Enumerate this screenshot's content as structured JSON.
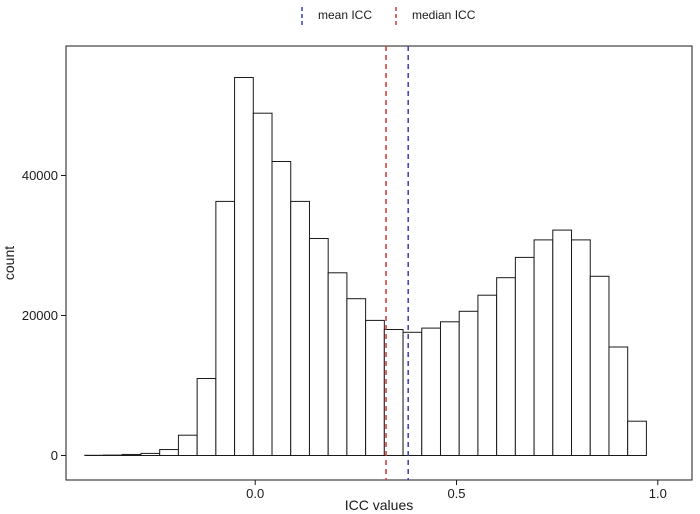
{
  "chart_data": {
    "type": "bar",
    "subtype": "histogram",
    "title": "",
    "xlabel": "ICC values",
    "ylabel": "count",
    "bin_width": 0.0465,
    "bin_centers": [
      -0.4,
      -0.3535,
      -0.307,
      -0.2605,
      -0.214,
      -0.1675,
      -0.121,
      -0.0745,
      -0.028,
      0.0185,
      0.065,
      0.1115,
      0.158,
      0.2045,
      0.251,
      0.2975,
      0.344,
      0.3905,
      0.437,
      0.4835,
      0.53,
      0.5765,
      0.623,
      0.6695,
      0.716,
      0.7625,
      0.809,
      0.8555,
      0.902,
      0.9485,
      0.995
    ],
    "counts": [
      30,
      60,
      150,
      300,
      850,
      2900,
      11000,
      36300,
      54000,
      48900,
      42000,
      36300,
      31000,
      26100,
      22400,
      19300,
      18000,
      17600,
      18200,
      19100,
      20600,
      22900,
      25400,
      28300,
      30800,
      32200,
      30800,
      25600,
      15500,
      4900,
      0
    ],
    "xlim": [
      -0.47,
      1.085
    ],
    "ylim": [
      -3500,
      58500
    ],
    "x_ticks": [
      0.0,
      0.5,
      1.0
    ],
    "x_tick_labels": [
      "0.0",
      "0.5",
      "1.0"
    ],
    "y_ticks": [
      0,
      20000,
      40000
    ],
    "y_tick_labels": [
      "0",
      "20000",
      "40000"
    ],
    "reference_lines": [
      {
        "name": "mean ICC",
        "x": 0.38,
        "color": "#3b3bb3",
        "style": "dashed"
      },
      {
        "name": "median ICC",
        "x": 0.325,
        "color": "#d43535",
        "style": "dashed"
      }
    ],
    "bar_fill": "#ffffff",
    "bar_stroke": "#1a1a1a",
    "grid": false,
    "legend_position": "top"
  }
}
